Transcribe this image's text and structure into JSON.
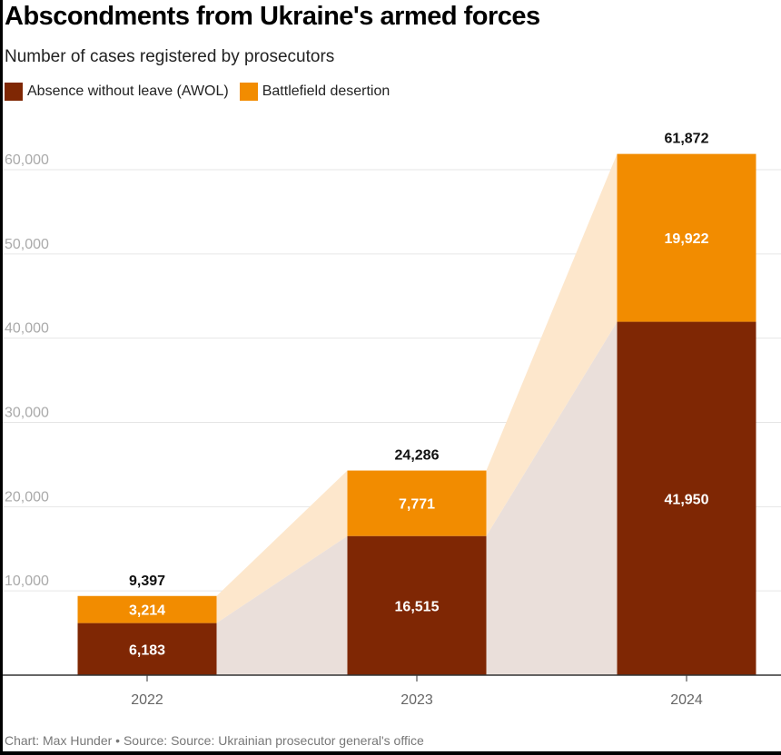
{
  "chart_data": {
    "type": "bar",
    "stacked": true,
    "title": "Abscondments from Ukraine's armed forces",
    "subtitle": "Number of cases registered by prosecutors",
    "categories": [
      "2022",
      "2023",
      "2024"
    ],
    "series": [
      {
        "name": "Absence without leave (AWOL)",
        "color": "#7f2704",
        "values": [
          6183,
          16515,
          41950
        ],
        "labels": [
          "6,183",
          "16,515",
          "41,950"
        ]
      },
      {
        "name": "Battlefield desertion",
        "color": "#f28c00",
        "values": [
          3214,
          7771,
          19922
        ],
        "labels": [
          "3,214",
          "7,771",
          "19,922"
        ]
      }
    ],
    "totals": [
      9397,
      24286,
      61872
    ],
    "total_labels": [
      "9,397",
      "24,286",
      "61,872"
    ],
    "ylim": [
      0,
      60000
    ],
    "yticks": [
      10000,
      20000,
      30000,
      40000,
      50000,
      60000
    ],
    "ytick_labels": [
      "10,000",
      "20,000",
      "30,000",
      "40,000",
      "50,000",
      "60,000"
    ],
    "grid": true,
    "legend_position": "top-left",
    "connector_colors": {
      "awol": "#eadfda",
      "desertion": "#fde7cc"
    },
    "footer": "Chart: Max Hunder • Source: Source: Ukrainian prosecutor general's office"
  }
}
